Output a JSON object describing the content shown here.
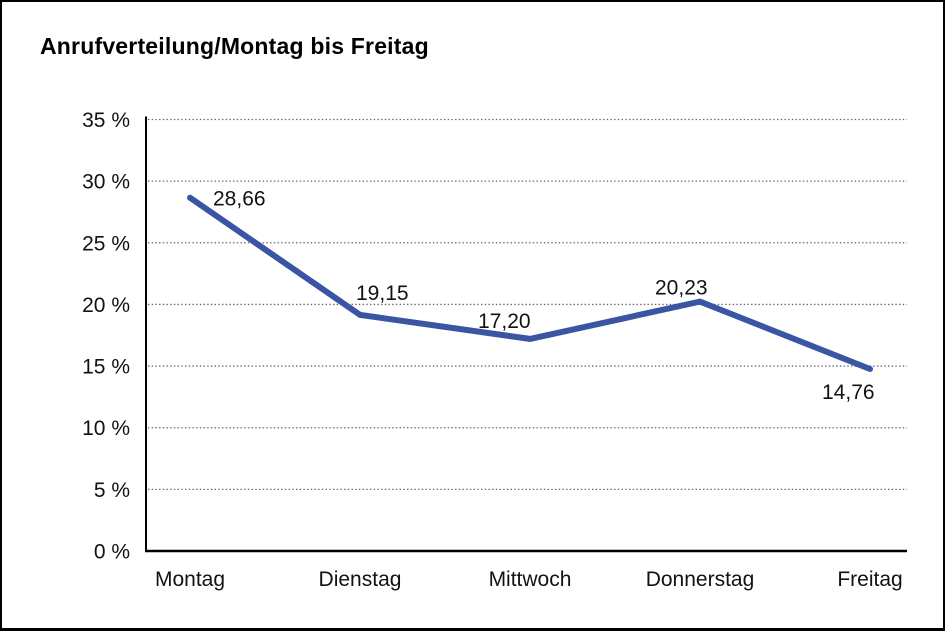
{
  "page": {
    "title": "Anrufverteilung/Montag bis Freitag"
  },
  "chart_data": {
    "type": "line",
    "title": "Anrufverteilung/Montag bis Freitag",
    "categories": [
      "Montag",
      "Dienstag",
      "Mittwoch",
      "Donnerstag",
      "Freitag"
    ],
    "values": [
      28.66,
      19.15,
      17.2,
      20.23,
      14.76
    ],
    "value_labels": [
      "28,66",
      "19,15",
      "17,20",
      "20,23",
      "14,76"
    ],
    "xlabel": "",
    "ylabel": "",
    "ylim": [
      0,
      35
    ],
    "y_ticks": [
      0,
      5,
      10,
      15,
      20,
      25,
      30,
      35
    ],
    "y_tick_labels": [
      "0 %",
      "5 %",
      "10 %",
      "15 %",
      "20 %",
      "25 %",
      "30 %",
      "35 %"
    ],
    "grid": "horizontal-dotted",
    "legend": "none",
    "line_color": "#3A55A4",
    "line_width": 6,
    "marker": "none"
  },
  "colors": {
    "background": "#ffffff",
    "border": "#000000",
    "axis": "#000000",
    "grid": "#666666",
    "text": "#121212",
    "line": "#3A55A4"
  }
}
